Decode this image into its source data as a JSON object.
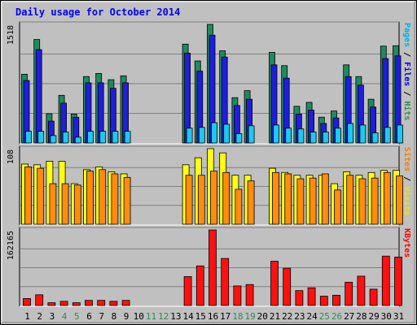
{
  "chart_data": {
    "type": "bar",
    "title": "Daily usage for October 2014",
    "categories": [
      "1",
      "2",
      "3",
      "4",
      "5",
      "6",
      "7",
      "8",
      "9",
      "10",
      "11",
      "12",
      "13",
      "14",
      "15",
      "16",
      "17",
      "18",
      "19",
      "20",
      "21",
      "22",
      "23",
      "24",
      "25",
      "26",
      "27",
      "28",
      "29",
      "30",
      "31"
    ],
    "weekend_days": [
      "4",
      "5",
      "11",
      "12",
      "18",
      "19",
      "25",
      "26"
    ],
    "panels": [
      {
        "name": "pages-files-hits",
        "y_max_label": "1518",
        "ylim": [
          0,
          1518
        ],
        "side_labels": [
          {
            "text": "Pages",
            "color": "#00b0e0"
          },
          {
            "text": " / ",
            "color": "#000000"
          },
          {
            "text": "Files",
            "color": "#0000e0"
          },
          {
            "text": " / ",
            "color": "#000000"
          },
          {
            "text": "Hits",
            "color": "#2e8b57"
          }
        ],
        "series": [
          {
            "name": "Hits",
            "color": "#1f8a5f",
            "values": [
              880,
              1325,
              375,
              610,
              370,
              850,
              890,
              810,
              860,
              0,
              0,
              0,
              0,
              1265,
              1050,
              1518,
              1180,
              580,
              670,
              0,
              1160,
              990,
              470,
              520,
              330,
              410,
              1000,
              850,
              560,
              1240,
              1245
            ]
          },
          {
            "name": "Files",
            "color": "#1e1edc",
            "values": [
              800,
              1195,
              280,
              510,
              330,
              770,
              770,
              700,
              770,
              0,
              0,
              0,
              0,
              1150,
              920,
              1380,
              1100,
              480,
              560,
              0,
              1000,
              830,
              370,
              420,
              250,
              320,
              850,
              740,
              460,
              1080,
              1115
            ]
          },
          {
            "name": "Pages",
            "color": "#1ec8f0",
            "values": [
              150,
              150,
              95,
              140,
              75,
              150,
              150,
              150,
              150,
              0,
              0,
              0,
              0,
              190,
              200,
              260,
              240,
              120,
              220,
              0,
              230,
              190,
              180,
              140,
              140,
              190,
              250,
              230,
              130,
              200,
              230
            ]
          }
        ]
      },
      {
        "name": "sites-visits",
        "y_max_label": "108",
        "ylim": [
          0,
          108
        ],
        "side_labels": [
          {
            "text": "Sites",
            "color": "#f08000"
          },
          {
            "text": " / ",
            "color": "#000000"
          },
          {
            "text": "Visits",
            "color": "#e8e800"
          }
        ],
        "series": [
          {
            "name": "Visits",
            "color": "#ffff14",
            "values": [
              86,
              85,
              90,
              90,
              58,
              78,
              82,
              75,
              72,
              0,
              0,
              0,
              0,
              85,
              95,
              108,
              102,
              70,
              70,
              0,
              80,
              74,
              70,
              70,
              70,
              58,
              75,
              70,
              74,
              77,
              77
            ]
          },
          {
            "name": "Sites",
            "color": "#ff8c0a",
            "values": [
              82,
              80,
              58,
              58,
              56,
              76,
              78,
              72,
              67,
              0,
              0,
              0,
              0,
              70,
              70,
              76,
              74,
              50,
              62,
              0,
              74,
              72,
              65,
              66,
              72,
              49,
              70,
              65,
              66,
              74,
              69
            ]
          }
        ]
      },
      {
        "name": "kbytes",
        "y_max_label": "162165",
        "ylim": [
          0,
          162165
        ],
        "side_labels": [
          {
            "text": "KBytes",
            "color": "#ff0000"
          }
        ],
        "series": [
          {
            "name": "KBytes",
            "color": "#ff1010",
            "values": [
              15000,
              23000,
              6000,
              9000,
              6000,
              11000,
              11000,
              9000,
              11000,
              0,
              0,
              0,
              0,
              62000,
              85000,
              162165,
              101000,
              42000,
              45000,
              0,
              95000,
              80000,
              32000,
              38000,
              20000,
              22000,
              50000,
              63000,
              35000,
              106000,
              104000
            ]
          }
        ]
      }
    ]
  }
}
